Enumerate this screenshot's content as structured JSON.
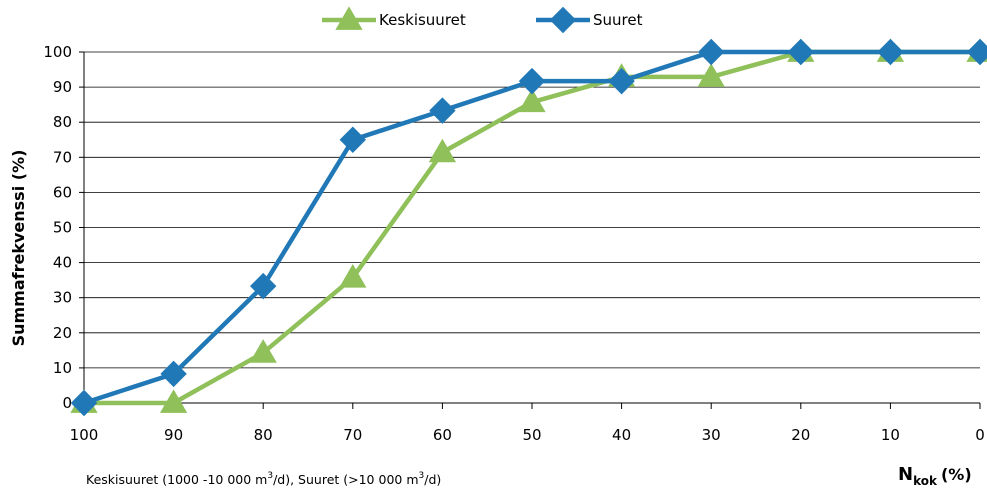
{
  "chart_data": {
    "type": "line",
    "categories": [
      "100",
      "90",
      "80",
      "70",
      "60",
      "50",
      "40",
      "30",
      "20",
      "10",
      "0"
    ],
    "series": [
      {
        "name": "Keskisuuret",
        "color": "#8fc05a",
        "marker": "triangle",
        "values": [
          0,
          0,
          14.3,
          35.7,
          71.4,
          85.7,
          92.9,
          92.9,
          100,
          100,
          100
        ]
      },
      {
        "name": "Suuret",
        "color": "#2178b7",
        "marker": "diamond",
        "values": [
          0,
          8.3,
          33.3,
          75,
          83.3,
          91.7,
          91.7,
          100,
          100,
          100,
          100
        ]
      }
    ],
    "ylim": [
      0,
      100
    ],
    "yticks": [
      "0",
      "10",
      "20",
      "30",
      "40",
      "50",
      "60",
      "70",
      "80",
      "90",
      "100"
    ],
    "ylabel": "Summafrekvenssi (%)",
    "xlabel": {
      "main": "N",
      "subscript": "kok",
      "unit": "(%)"
    },
    "note": {
      "part1": "Keskisuuret (1000 -10 000 m",
      "sup1": "3",
      "part2": "/d), Suuret (>10 000 m",
      "sup2": "3",
      "part3": "/d)"
    },
    "grid": "horizontal",
    "legend_position": "top-center"
  }
}
